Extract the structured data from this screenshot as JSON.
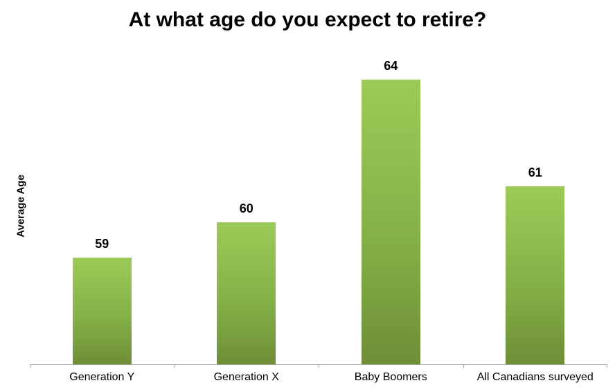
{
  "chart_data": {
    "type": "bar",
    "title": "At what age do you expect to retire?",
    "categories": [
      "Generation Y",
      "Generation X",
      "Baby Boomers",
      "All Canadians surveyed"
    ],
    "values": [
      59,
      60,
      64,
      61
    ],
    "value_labels": [
      "59",
      "60",
      "64",
      "61"
    ],
    "xlabel": "",
    "ylabel": "Average Age",
    "ylim": [
      56,
      65
    ],
    "grid": false,
    "legend": false,
    "colors": {
      "bar_gradient_top": "#9ccb57",
      "bar_gradient_mid": "#85b148",
      "bar_gradient_bottom": "#6f8e37",
      "axis_line": "#a6a6a6",
      "text": "#000000",
      "background": "#ffffff"
    }
  }
}
